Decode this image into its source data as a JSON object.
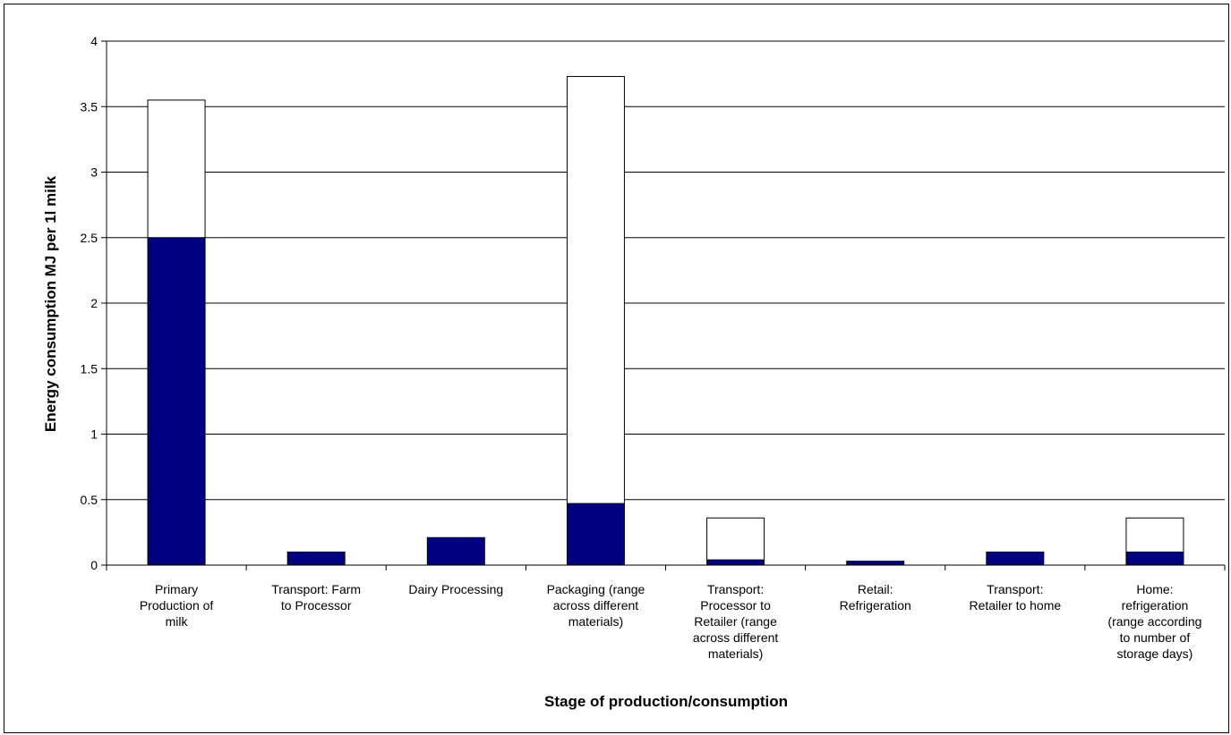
{
  "chart_data": {
    "type": "bar",
    "stacked": true,
    "title": "",
    "xlabel": "Stage of production/consumption",
    "ylabel": "Energy consumption MJ per 1l milk",
    "ylim": [
      0,
      4
    ],
    "yticks": [
      "0",
      "0.5",
      "1",
      "1.5",
      "2",
      "2.5",
      "3",
      "3.5",
      "4"
    ],
    "grid": true,
    "legend": "none",
    "categories": [
      "Primary Production of milk",
      "Transport: Farm to Processor",
      "Dairy Processing",
      "Packaging (range across different materials)",
      "Transport: Processor to Retailer (range across different materials)",
      "Retail: Refrigeration",
      "Transport: Retailer to home",
      "Home: refrigeration (range according to number of storage days)"
    ],
    "category_lines": [
      [
        "Primary",
        "Production of",
        "milk"
      ],
      [
        "Transport: Farm",
        "to Processor"
      ],
      [
        "Dairy Processing"
      ],
      [
        "Packaging (range",
        "across different",
        "materials)"
      ],
      [
        "Transport:",
        "Processor to",
        "Retailer (range",
        "across different",
        "materials)"
      ],
      [
        "Retail:",
        "Refrigeration"
      ],
      [
        "Transport:",
        "Retailer to home"
      ],
      [
        "Home:",
        "refrigeration",
        "(range according",
        "to number of",
        "storage days)"
      ]
    ],
    "series": [
      {
        "name": "",
        "color": "#000080",
        "values": [
          2.5,
          0.1,
          0.21,
          0.47,
          0.04,
          0.03,
          0.1,
          0.1
        ]
      },
      {
        "name": "",
        "color": "#ffffff",
        "values": [
          1.05,
          0,
          0,
          3.26,
          0.32,
          0,
          0,
          0.26
        ]
      }
    ]
  }
}
